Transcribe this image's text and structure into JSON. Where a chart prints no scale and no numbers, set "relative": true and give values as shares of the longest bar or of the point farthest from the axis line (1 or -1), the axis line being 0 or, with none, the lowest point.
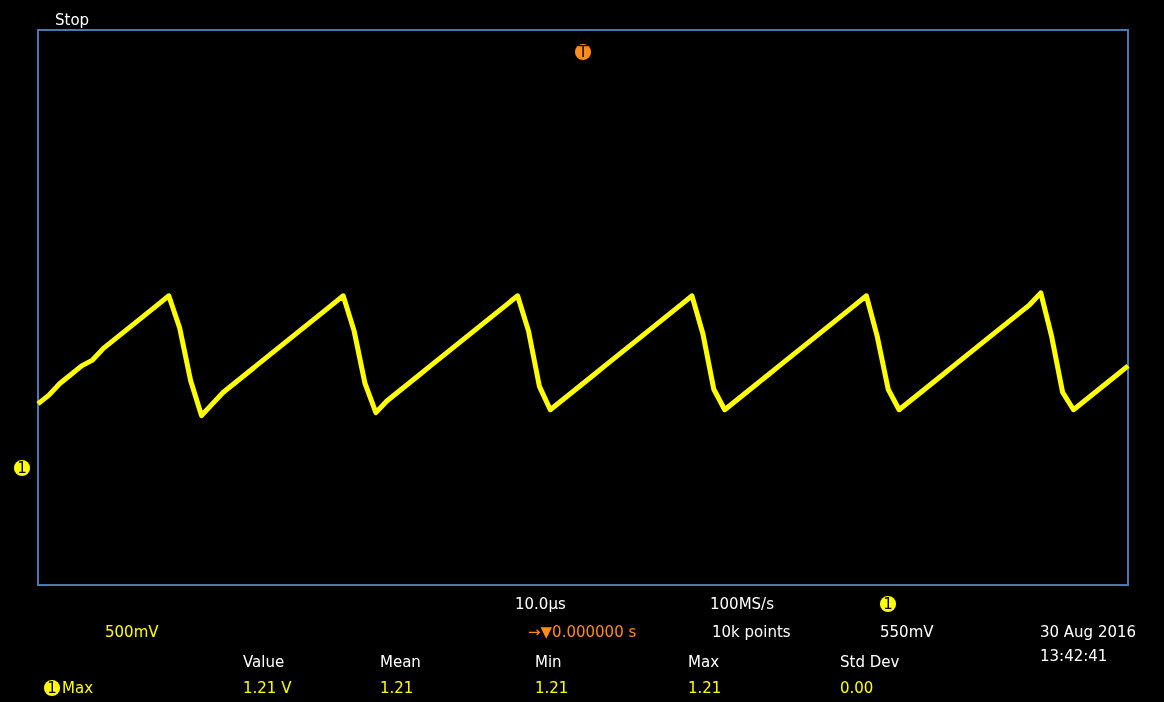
{
  "chart_data": {
    "type": "line",
    "relative": true,
    "categories": [
      null,
      null,
      null,
      null,
      null,
      null,
      null,
      null,
      null,
      null,
      null,
      null,
      null,
      null,
      null,
      null,
      null,
      null,
      null,
      null,
      null,
      null,
      null,
      null,
      null,
      null,
      null,
      null,
      null,
      null,
      null,
      null,
      null,
      null,
      null,
      null,
      null,
      null,
      null,
      null,
      null,
      null,
      null,
      null,
      null,
      null,
      null,
      null,
      null,
      null,
      null,
      null,
      null,
      null,
      null,
      null,
      null,
      null,
      null,
      null,
      null,
      null,
      null,
      null,
      null,
      null,
      null,
      null,
      null,
      null,
      null,
      null,
      null,
      null,
      null,
      null,
      null,
      null,
      null,
      null,
      null,
      null,
      null,
      null,
      null,
      null,
      null,
      null,
      null,
      null,
      null,
      null,
      null,
      null,
      null,
      null,
      null,
      null,
      null,
      null,
      null
    ],
    "series": [
      {
        "color": "#ffff00",
        "values": [
          0.62,
          0.65,
          0.69,
          0.72,
          0.75,
          0.77,
          0.81,
          0.84,
          0.87,
          0.9,
          0.93,
          0.96,
          0.99,
          0.88,
          0.7,
          0.58,
          0.62,
          0.66,
          0.69,
          0.72,
          0.75,
          0.78,
          0.81,
          0.84,
          0.87,
          0.9,
          0.93,
          0.96,
          0.99,
          0.87,
          0.69,
          0.59,
          0.63,
          0.66,
          0.69,
          0.72,
          0.75,
          0.78,
          0.81,
          0.84,
          0.87,
          0.9,
          0.93,
          0.96,
          0.99,
          0.87,
          0.68,
          0.6,
          0.63,
          0.66,
          0.69,
          0.72,
          0.75,
          0.78,
          0.81,
          0.84,
          0.87,
          0.9,
          0.93,
          0.96,
          0.99,
          0.86,
          0.67,
          0.6,
          0.63,
          0.66,
          0.69,
          0.72,
          0.75,
          0.78,
          0.81,
          0.84,
          0.87,
          0.9,
          0.93,
          0.96,
          0.99,
          0.85,
          0.67,
          0.6,
          0.63,
          0.66,
          0.69,
          0.72,
          0.75,
          0.78,
          0.81,
          0.84,
          0.87,
          0.9,
          0.93,
          0.96,
          1.0,
          0.85,
          0.66,
          0.6,
          0.63,
          0.66,
          0.69,
          0.72,
          0.75
        ]
      }
    ],
    "annotations": [
      "Stop",
      "1",
      "T",
      "500mV",
      "10.0µs",
      "100MS/s",
      "1",
      "550mV",
      "→▼0.000000 s",
      "10k points",
      "30 Aug 2016",
      "13:42:41",
      "Value",
      "Mean",
      "Min",
      "Max",
      "Std Dev",
      "1",
      "Max",
      "1.21 V",
      "1.21",
      "1.21",
      "1.21",
      "0.00"
    ]
  }
}
